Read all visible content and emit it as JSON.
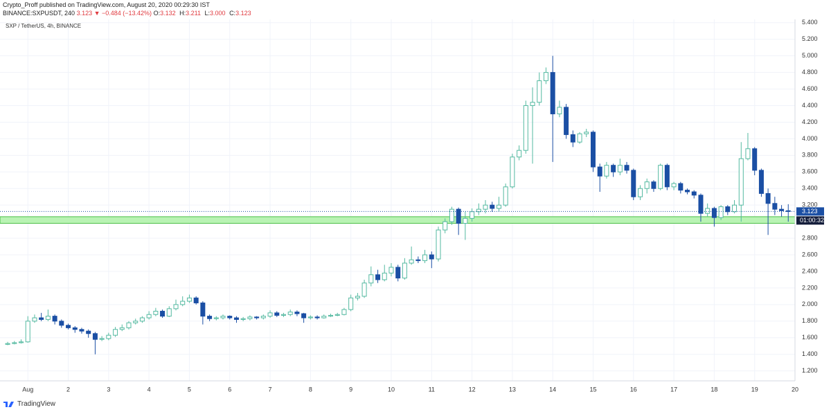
{
  "header": {
    "author_line": "Crypto_Proff published on TradingView.com, August 20, 2020 00:29:30 IST",
    "symbol": "BINANCE:SXPUSDT, 240",
    "change": "3.123 ▼ −0.484 (−13.42%)",
    "ohlc": [
      {
        "key": "O:",
        "val": "3.132"
      },
      {
        "key": "H:",
        "val": "3.211"
      },
      {
        "key": "L:",
        "val": "3.000"
      },
      {
        "key": "C:",
        "val": "3.123"
      }
    ]
  },
  "footer": {
    "brand": "TradingView"
  },
  "chart_data": {
    "type": "candlestick",
    "legend": "SXP / TetherUS, 4h, BINANCE",
    "up_color": "#53b9a0",
    "down_color": "#1b4fa4",
    "grid": true,
    "x": [
      0.5,
      0.667,
      0.833,
      1,
      1.167,
      1.333,
      1.5,
      1.667,
      1.833,
      2,
      2.167,
      2.333,
      2.5,
      2.667,
      2.833,
      3,
      3.167,
      3.333,
      3.5,
      3.667,
      3.833,
      4,
      4.167,
      4.333,
      4.5,
      4.667,
      4.833,
      5,
      5.167,
      5.333,
      5.5,
      5.667,
      5.833,
      6,
      6.167,
      6.333,
      6.5,
      6.667,
      6.833,
      7,
      7.167,
      7.333,
      7.5,
      7.667,
      7.833,
      8,
      8.167,
      8.333,
      8.5,
      8.667,
      8.833,
      9,
      9.167,
      9.333,
      9.5,
      9.667,
      9.833,
      10,
      10.167,
      10.333,
      10.5,
      10.667,
      10.833,
      11,
      11.167,
      11.333,
      11.5,
      11.667,
      11.833,
      12,
      12.167,
      12.333,
      12.5,
      12.667,
      12.833,
      13,
      13.167,
      13.333,
      13.5,
      13.667,
      13.833,
      14,
      14.167,
      14.333,
      14.5,
      14.667,
      14.833,
      15,
      15.167,
      15.333,
      15.5,
      15.667,
      15.833,
      16,
      16.167,
      16.333,
      16.5,
      16.667,
      16.833,
      17,
      17.167,
      17.333,
      17.5,
      17.667,
      17.833,
      18,
      18.167,
      18.333,
      18.5,
      18.667,
      18.833,
      19,
      19.167,
      19.333,
      19.5,
      19.667,
      19.833
    ],
    "open": [
      1.52,
      1.53,
      1.54,
      1.55,
      1.8,
      1.84,
      1.82,
      1.86,
      1.8,
      1.75,
      1.72,
      1.7,
      1.68,
      1.65,
      1.58,
      1.59,
      1.63,
      1.7,
      1.72,
      1.78,
      1.8,
      1.84,
      1.88,
      1.92,
      1.86,
      1.95,
      2.0,
      2.04,
      2.08,
      2.02,
      1.86,
      1.83,
      1.84,
      1.86,
      1.84,
      1.82,
      1.83,
      1.85,
      1.84,
      1.86,
      1.9,
      1.87,
      1.88,
      1.91,
      1.89,
      1.84,
      1.85,
      1.84,
      1.86,
      1.87,
      1.88,
      1.94,
      2.08,
      2.1,
      2.26,
      2.36,
      2.3,
      2.38,
      2.45,
      2.32,
      2.5,
      2.54,
      2.53,
      2.6,
      2.55,
      2.9,
      3.0,
      3.15,
      2.98,
      3.04,
      3.12,
      3.15,
      3.2,
      3.16,
      3.2,
      3.42,
      3.78,
      3.86,
      4.4,
      4.44,
      4.7,
      4.8,
      4.3,
      4.38,
      4.05,
      3.96,
      4.06,
      4.08,
      3.66,
      3.55,
      3.68,
      3.6,
      3.68,
      3.62,
      3.3,
      3.4,
      3.48,
      3.4,
      3.68,
      3.42,
      3.46,
      3.38,
      3.36,
      3.32,
      3.1,
      3.16,
      3.05,
      3.18,
      3.12,
      3.2,
      3.76,
      3.88,
      3.62,
      3.34,
      3.22,
      3.15,
      3.132
    ],
    "high": [
      1.55,
      1.56,
      1.58,
      1.86,
      1.88,
      1.9,
      1.94,
      1.88,
      1.82,
      1.77,
      1.74,
      1.72,
      1.7,
      1.67,
      1.62,
      1.66,
      1.73,
      1.76,
      1.8,
      1.83,
      1.86,
      1.92,
      1.96,
      1.94,
      1.98,
      2.06,
      2.1,
      2.12,
      2.1,
      2.04,
      1.88,
      1.86,
      1.88,
      1.87,
      1.86,
      1.85,
      1.87,
      1.86,
      1.88,
      1.93,
      1.92,
      1.9,
      1.94,
      1.93,
      1.9,
      1.87,
      1.87,
      1.88,
      1.89,
      1.9,
      1.96,
      2.12,
      2.14,
      2.3,
      2.46,
      2.42,
      2.48,
      2.5,
      2.48,
      2.56,
      2.7,
      2.58,
      2.66,
      2.64,
      2.94,
      3.04,
      3.18,
      3.17,
      3.12,
      3.16,
      3.22,
      3.26,
      3.24,
      3.3,
      3.46,
      3.82,
      3.92,
      4.46,
      4.62,
      4.8,
      4.86,
      5.0,
      4.46,
      4.42,
      4.1,
      4.08,
      4.12,
      4.1,
      3.7,
      3.72,
      3.7,
      3.76,
      3.72,
      3.64,
      3.44,
      3.52,
      3.5,
      3.7,
      3.7,
      3.48,
      3.48,
      3.4,
      3.38,
      3.34,
      3.22,
      3.18,
      3.2,
      3.2,
      3.26,
      3.96,
      4.07,
      3.9,
      3.64,
      3.4,
      3.3,
      3.2,
      3.211
    ],
    "low": [
      1.51,
      1.52,
      1.53,
      1.54,
      1.78,
      1.8,
      1.8,
      1.76,
      1.72,
      1.7,
      1.66,
      1.65,
      1.6,
      1.4,
      1.56,
      1.57,
      1.61,
      1.68,
      1.7,
      1.76,
      1.78,
      1.82,
      1.86,
      1.84,
      1.85,
      1.93,
      1.98,
      2.02,
      2.0,
      1.76,
      1.8,
      1.81,
      1.82,
      1.82,
      1.78,
      1.8,
      1.81,
      1.82,
      1.82,
      1.84,
      1.85,
      1.85,
      1.86,
      1.86,
      1.78,
      1.82,
      1.82,
      1.83,
      1.85,
      1.86,
      1.87,
      1.92,
      2.05,
      2.08,
      2.22,
      2.26,
      2.28,
      2.34,
      2.28,
      2.3,
      2.48,
      2.5,
      2.5,
      2.44,
      2.52,
      2.86,
      2.96,
      2.84,
      2.78,
      3.0,
      3.08,
      3.1,
      3.12,
      3.12,
      3.18,
      3.4,
      3.74,
      3.82,
      3.7,
      4.4,
      4.66,
      3.72,
      4.26,
      4.0,
      3.9,
      3.94,
      4.02,
      3.6,
      3.36,
      3.52,
      3.54,
      3.56,
      3.58,
      3.26,
      3.26,
      3.34,
      3.36,
      3.38,
      3.38,
      3.38,
      3.34,
      3.33,
      3.28,
      3.0,
      3.06,
      2.94,
      3.02,
      3.08,
      3.1,
      3.0,
      3.74,
      3.56,
      3.3,
      2.84,
      3.08,
      3.06,
      3.0
    ],
    "close": [
      1.53,
      1.54,
      1.55,
      1.8,
      1.84,
      1.82,
      1.86,
      1.8,
      1.75,
      1.72,
      1.7,
      1.68,
      1.65,
      1.58,
      1.59,
      1.63,
      1.7,
      1.72,
      1.78,
      1.8,
      1.84,
      1.88,
      1.92,
      1.86,
      1.95,
      2.0,
      2.04,
      2.08,
      2.02,
      1.86,
      1.83,
      1.84,
      1.86,
      1.84,
      1.82,
      1.83,
      1.85,
      1.84,
      1.86,
      1.9,
      1.87,
      1.88,
      1.91,
      1.89,
      1.84,
      1.85,
      1.84,
      1.86,
      1.87,
      1.88,
      1.94,
      2.08,
      2.1,
      2.26,
      2.36,
      2.3,
      2.38,
      2.45,
      2.32,
      2.5,
      2.54,
      2.53,
      2.6,
      2.55,
      2.9,
      3.0,
      3.15,
      2.98,
      3.04,
      3.12,
      3.15,
      3.2,
      3.16,
      3.2,
      3.42,
      3.78,
      3.86,
      4.4,
      4.44,
      4.7,
      4.8,
      4.3,
      4.38,
      4.05,
      3.96,
      4.06,
      4.08,
      3.66,
      3.55,
      3.68,
      3.6,
      3.68,
      3.62,
      3.3,
      3.4,
      3.48,
      3.4,
      3.68,
      3.42,
      3.46,
      3.38,
      3.36,
      3.32,
      3.1,
      3.16,
      3.05,
      3.18,
      3.12,
      3.2,
      3.76,
      3.88,
      3.62,
      3.34,
      3.22,
      3.15,
      3.132,
      3.123
    ],
    "xlim": [
      0.31,
      20
    ],
    "xticks": [
      {
        "value": 1,
        "label": "Aug"
      },
      2,
      3,
      4,
      5,
      6,
      7,
      8,
      9,
      10,
      11,
      12,
      13,
      14,
      15,
      16,
      17,
      18,
      19,
      20
    ],
    "ylim": [
      1.08,
      5.44
    ],
    "yticks": [
      {
        "value": 1.2,
        "label": "1.200"
      },
      {
        "value": 1.4,
        "label": "1.400"
      },
      {
        "value": 1.6,
        "label": "1.600"
      },
      {
        "value": 1.8,
        "label": "1.800"
      },
      {
        "value": 2.0,
        "label": "2.000"
      },
      {
        "value": 2.2,
        "label": "2.200"
      },
      {
        "value": 2.4,
        "label": "2.400"
      },
      {
        "value": 2.6,
        "label": "2.600"
      },
      {
        "value": 2.8,
        "label": "2.800"
      },
      {
        "value": 3.0,
        "label": "3.000"
      },
      {
        "value": 3.2,
        "label": "3.200"
      },
      {
        "value": 3.4,
        "label": "3.400"
      },
      {
        "value": 3.6,
        "label": "3.600"
      },
      {
        "value": 3.8,
        "label": "3.800"
      },
      {
        "value": 4.0,
        "label": "4.000"
      },
      {
        "value": 4.2,
        "label": "4.200"
      },
      {
        "value": 4.4,
        "label": "4.400"
      },
      {
        "value": 4.6,
        "label": "4.600"
      },
      {
        "value": 4.8,
        "label": "4.800"
      },
      {
        "value": 5.0,
        "label": "5.000"
      },
      {
        "value": 5.2,
        "label": "5.200"
      },
      {
        "value": 5.4,
        "label": "5.400"
      }
    ],
    "last_price": 3.123,
    "last_price_color": "#1b4fa4",
    "countdown": "01:00:32",
    "zone": [
      2.98,
      3.06
    ],
    "zone_color": "#b9f3b4",
    "zone_border": "#4cbf47"
  }
}
